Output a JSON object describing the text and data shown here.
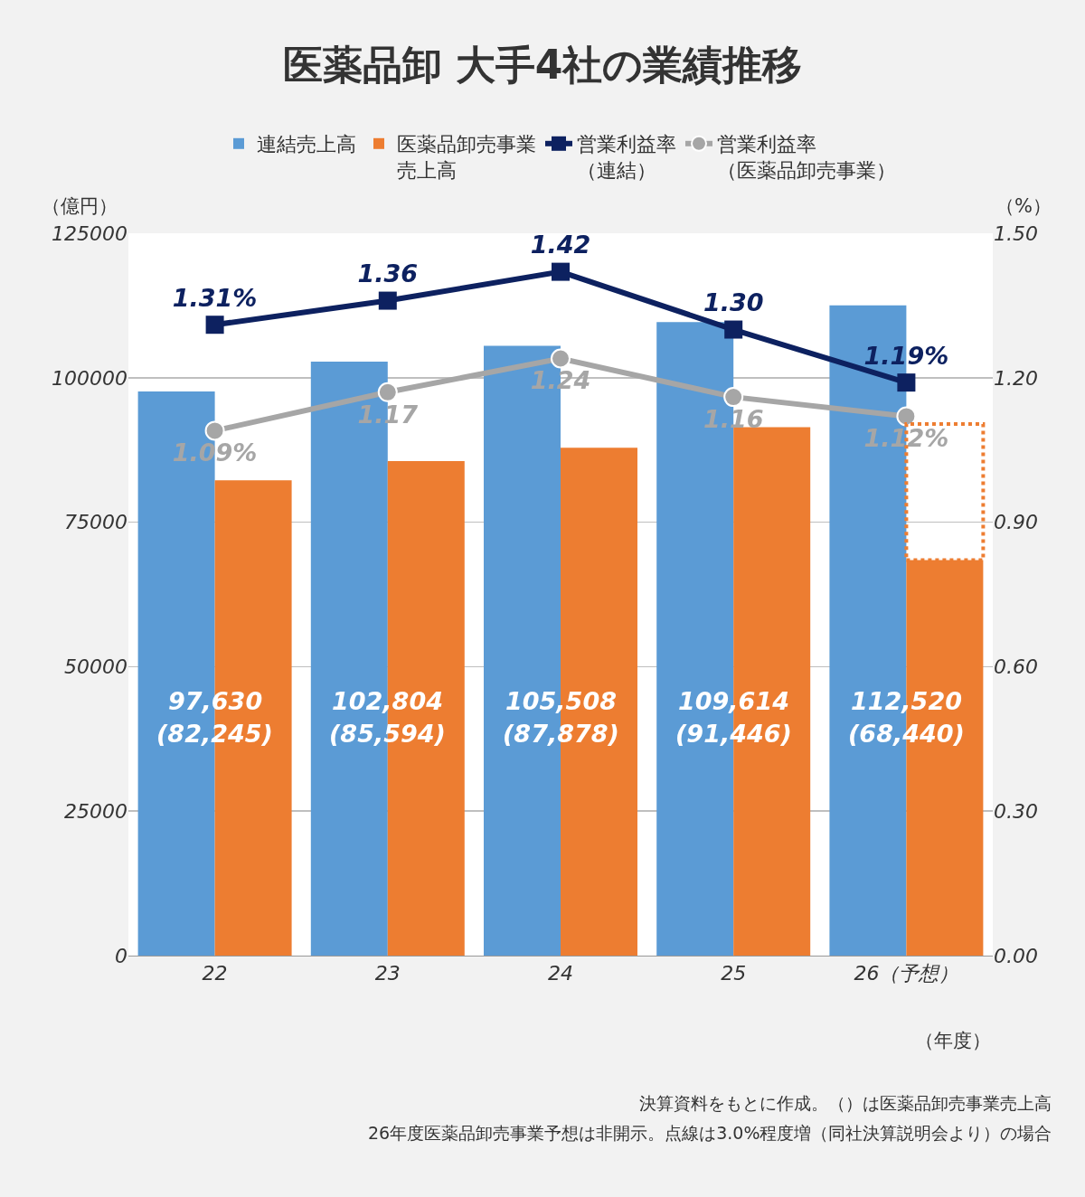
{
  "chart_data": {
    "type": "bar",
    "title": "医薬品卸 大手4社の業績推移",
    "categories": [
      "22",
      "23",
      "24",
      "25",
      "26（予想）"
    ],
    "xlabel": "（年度）",
    "ylabel": "（億円）",
    "y2label": "（%）",
    "series": [
      {
        "name": "連結売上高",
        "color": "#5b9bd5",
        "values": [
          97630,
          102804,
          105508,
          109614,
          112520
        ],
        "value_labels": [
          "97,630",
          "102,804",
          "105,508",
          "109,614",
          "112,520"
        ]
      },
      {
        "name": "医薬品卸売事業売上高",
        "color": "#ed7d31",
        "values": [
          82245,
          85594,
          87878,
          91446,
          68440
        ],
        "value_labels": [
          "(82,245)",
          "(85,594)",
          "(87,878)",
          "(91,446)",
          "(68,440)"
        ]
      },
      {
        "color": "#ed7d31",
        "line_style": "dotted",
        "base": [
          null,
          null,
          null,
          null,
          68440
        ],
        "values": [
          null,
          null,
          null,
          null,
          23560
        ]
      },
      {
        "name": "営業利益率（連結）",
        "type": "line",
        "axis": "y2",
        "color": "#0d2160",
        "marker": "square",
        "values": [
          1.31,
          1.36,
          1.42,
          1.3,
          1.19
        ],
        "value_labels": [
          "1.31%",
          "1.36",
          "1.42",
          "1.30",
          "1.19%"
        ]
      },
      {
        "name": "営業利益率（医薬品卸売事業）",
        "type": "line",
        "axis": "y2",
        "color": "#a6a6a6",
        "marker": "circle",
        "values": [
          1.09,
          1.17,
          1.24,
          1.16,
          1.12
        ],
        "value_labels": [
          "1.09%",
          "1.17",
          "1.24",
          "1.16",
          "1.12%"
        ]
      }
    ],
    "ylim": [
      0,
      125000
    ],
    "yticks": [
      0,
      25000,
      50000,
      75000,
      100000,
      125000
    ],
    "y2lim": [
      0,
      1.5
    ],
    "y2ticks": [
      {
        "value": 0,
        "label": "0.00"
      },
      {
        "value": 0.3,
        "label": "0.30"
      },
      {
        "value": 0.6,
        "label": "0.60"
      },
      {
        "value": 0.9,
        "label": "0.90"
      },
      {
        "value": 1.2,
        "label": "1.20"
      },
      {
        "value": 1.5,
        "label": "1.50"
      }
    ],
    "grid": "y",
    "legend": "top",
    "annotations": [
      "決算資料をもとに作成。（）は医薬品卸売事業売上高",
      "26年度医薬品卸売事業予想は非開示。点線は3.0%程度増（同社決算説明会より）の場合"
    ]
  }
}
